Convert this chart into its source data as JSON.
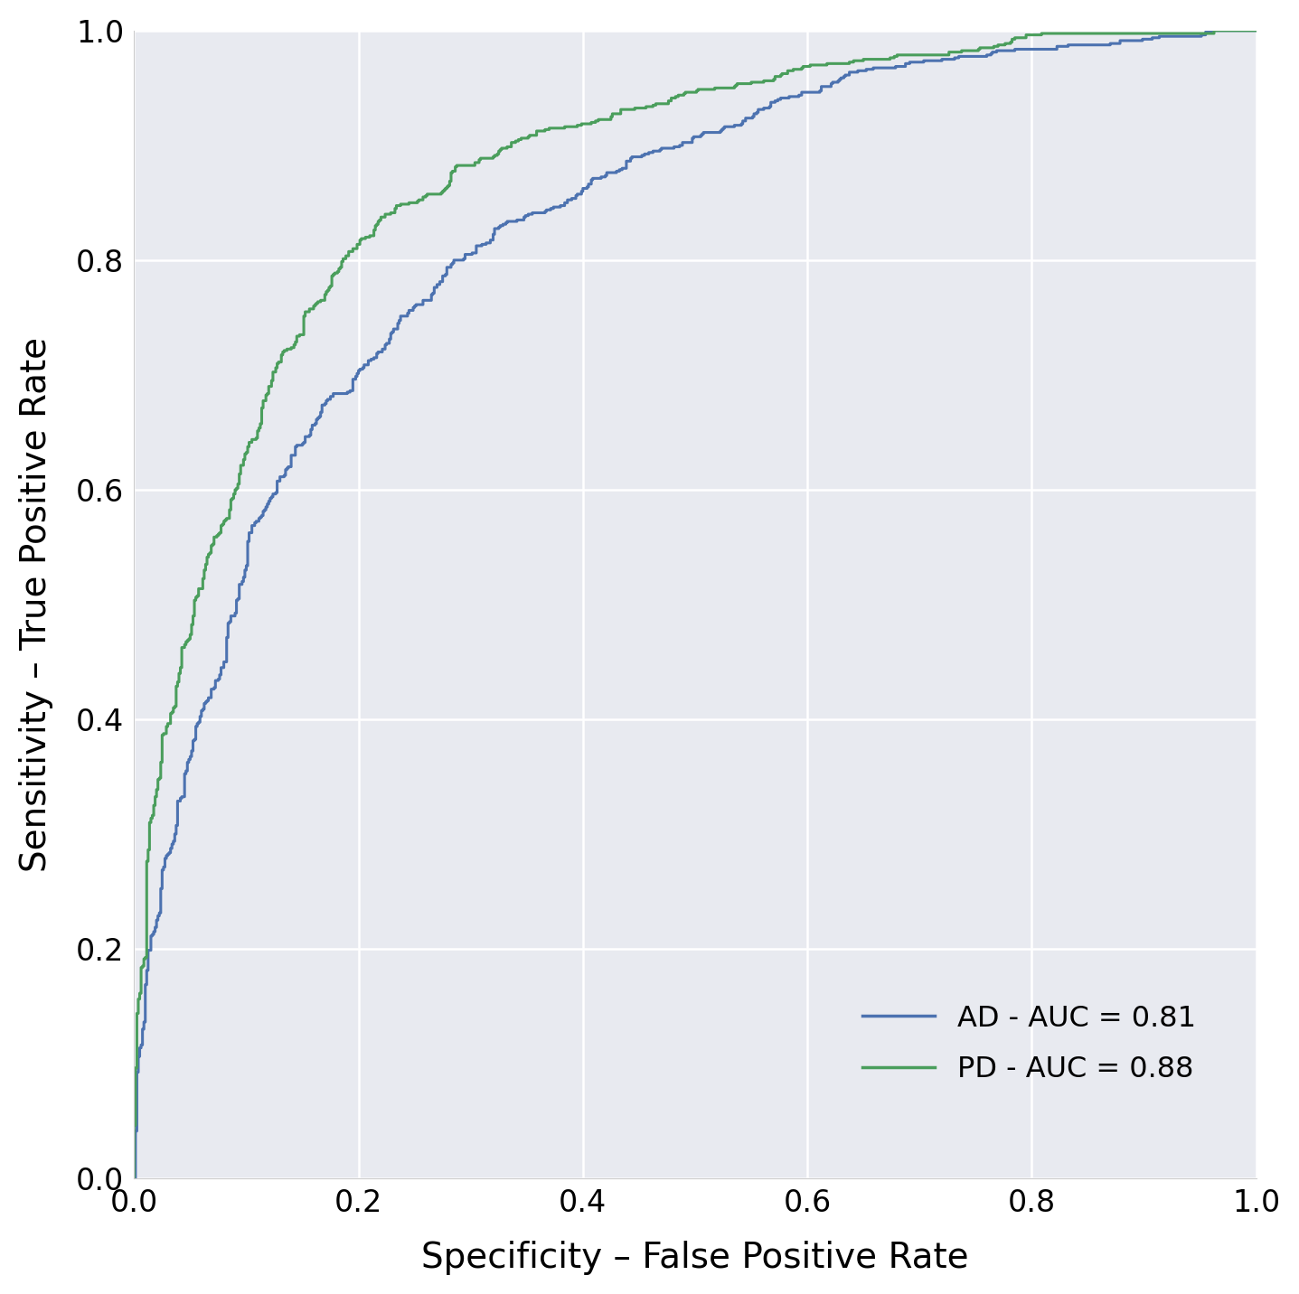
{
  "ad_auc": 0.81,
  "pd_auc": 0.88,
  "ad_color": "#4c72b0",
  "pd_color": "#4a9e5c",
  "plot_bg_color": "#e8eaf0",
  "fig_bg_color": "#ffffff",
  "xlabel": "Specificity – False Positive Rate",
  "ylabel": "Sensitivity – True Positive Rate",
  "legend_ad": "AD - AUC = 0.81",
  "legend_pd": "PD - AUC = 0.88",
  "line_width": 2.2,
  "xlabel_fontsize": 28,
  "ylabel_fontsize": 28,
  "tick_fontsize": 24,
  "legend_fontsize": 23,
  "figsize": [
    14.37,
    14.32
  ],
  "dpi": 100
}
